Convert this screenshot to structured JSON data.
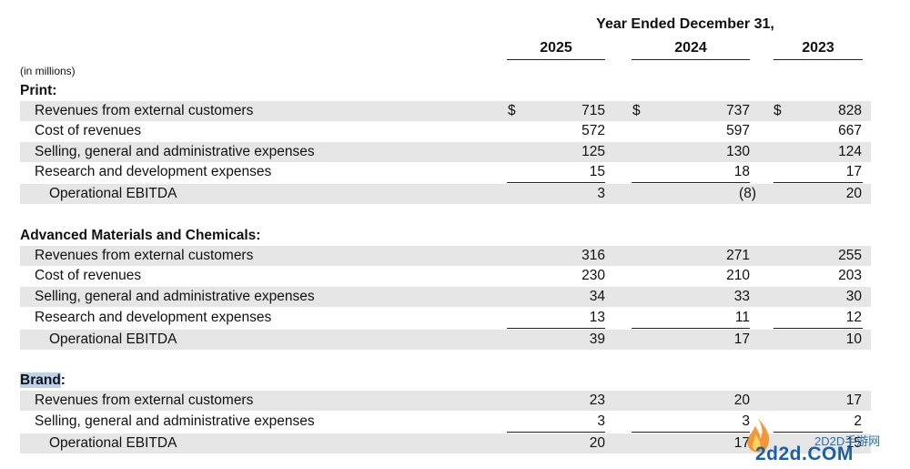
{
  "header": {
    "title": "Year Ended December 31,",
    "years": [
      "2025",
      "2024",
      "2023"
    ],
    "units": "(in millions)"
  },
  "currency_symbol": "$",
  "sections": [
    {
      "title": "Print:",
      "rows": [
        {
          "label": "Revenues from external customers",
          "values": [
            "715",
            "737",
            "828"
          ],
          "currency": true
        },
        {
          "label": "Cost of revenues",
          "values": [
            "572",
            "597",
            "667"
          ]
        },
        {
          "label": "Selling, general and administrative expenses",
          "values": [
            "125",
            "130",
            "124"
          ]
        },
        {
          "label": "Research and development expenses",
          "values": [
            "15",
            "18",
            "17"
          ]
        },
        {
          "label": "Operational EBITDA",
          "values": [
            "3",
            "(8)",
            "20"
          ],
          "subtotal": true
        }
      ]
    },
    {
      "title": "Advanced Materials and Chemicals:",
      "rows": [
        {
          "label": "Revenues from external customers",
          "values": [
            "316",
            "271",
            "255"
          ]
        },
        {
          "label": "Cost of revenues",
          "values": [
            "230",
            "210",
            "203"
          ]
        },
        {
          "label": "Selling, general and administrative expenses",
          "values": [
            "34",
            "33",
            "30"
          ]
        },
        {
          "label": "Research and development expenses",
          "values": [
            "13",
            "11",
            "12"
          ]
        },
        {
          "label": "Operational EBITDA",
          "values": [
            "39",
            "17",
            "10"
          ],
          "subtotal": true
        }
      ]
    },
    {
      "title_highlight": "Brand",
      "title_rest": ":",
      "rows": [
        {
          "label": "Revenues from external customers",
          "values": [
            "23",
            "20",
            "17"
          ]
        },
        {
          "label": "Selling, general and administrative expenses",
          "values": [
            "3",
            "3",
            "2"
          ]
        },
        {
          "label": "Operational EBITDA",
          "values": [
            "20",
            "17",
            "15"
          ],
          "subtotal": true
        }
      ]
    }
  ],
  "watermark": {
    "text_top": "2D2D手游网",
    "text_main": "2d2d.COM"
  }
}
